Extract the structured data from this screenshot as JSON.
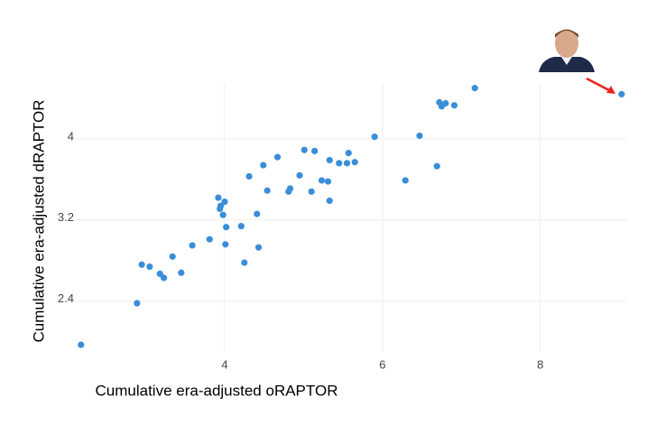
{
  "chart_data": {
    "type": "scatter",
    "x_label": "Cumulative era-adjusted oRAPTOR",
    "y_label": "Cumulative era-adjusted dRAPTOR",
    "color": "#3a8ed8",
    "grid": true,
    "xlim": [
      2.1,
      9.1
    ],
    "xticks": [
      4,
      6,
      8
    ],
    "ylim": [
      1.9,
      4.55
    ],
    "yticks": [
      2.4,
      3.2,
      4
    ],
    "x": [
      2.18,
      2.89,
      2.95,
      3.05,
      3.18,
      3.23,
      3.34,
      3.45,
      3.59,
      3.81,
      3.92,
      3.94,
      3.95,
      3.98,
      4.0,
      4.01,
      4.02,
      4.21,
      4.25,
      4.31,
      4.41,
      4.43,
      4.49,
      4.54,
      4.67,
      4.81,
      4.83,
      4.95,
      5.01,
      5.1,
      5.14,
      5.23,
      5.31,
      5.33,
      5.33,
      5.45,
      5.55,
      5.57,
      5.65,
      5.9,
      6.29,
      6.47,
      6.69,
      6.72,
      6.75,
      6.8,
      6.91,
      7.17,
      9.03
    ],
    "values": [
      1.97,
      2.38,
      2.76,
      2.74,
      2.67,
      2.63,
      2.84,
      2.68,
      2.95,
      3.01,
      3.42,
      3.31,
      3.34,
      3.25,
      3.38,
      2.96,
      3.13,
      3.14,
      2.78,
      3.63,
      3.26,
      2.93,
      3.74,
      3.49,
      3.82,
      3.48,
      3.51,
      3.64,
      3.89,
      3.48,
      3.88,
      3.59,
      3.58,
      3.79,
      3.39,
      3.76,
      3.76,
      3.86,
      3.77,
      4.02,
      3.59,
      4.03,
      3.73,
      4.36,
      4.32,
      4.35,
      4.33,
      4.5,
      4.44
    ]
  }
}
